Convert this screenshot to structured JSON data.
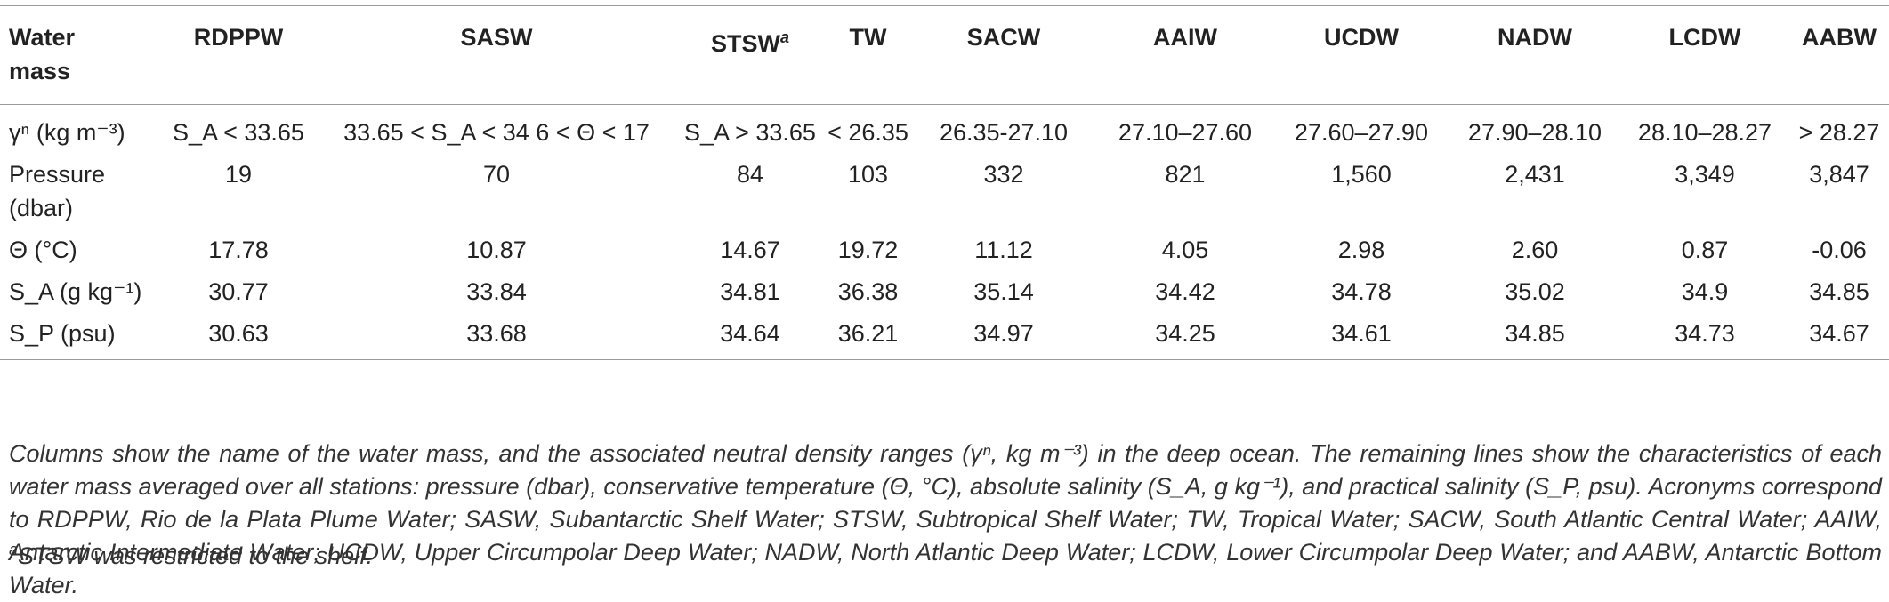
{
  "table": {
    "header": [
      "Water mass",
      "RDPPW",
      "SASW",
      "STSW",
      "TW",
      "SACW",
      "AAIW",
      "UCDW",
      "NADW",
      "LCDW",
      "AABW"
    ],
    "stsw_marker": "a",
    "rows": [
      {
        "label": "γⁿ (kg m⁻³)",
        "cells": [
          "S_A < 33.65",
          "33.65 < S_A < 34 6 < Θ < 17",
          "S_A > 33.65",
          "< 26.35",
          "26.35-27.10",
          "27.10–27.60",
          "27.60–27.90",
          "27.90–28.10",
          "28.10–28.27",
          "> 28.27"
        ]
      },
      {
        "label": "Pressure (dbar)",
        "cells": [
          "19",
          "70",
          "84",
          "103",
          "332",
          "821",
          "1,560",
          "2,431",
          "3,349",
          "3,847"
        ]
      },
      {
        "label": "Θ (°C)",
        "cells": [
          "17.78",
          "10.87",
          "14.67",
          "19.72",
          "11.12",
          "4.05",
          "2.98",
          "2.60",
          "0.87",
          "-0.06"
        ]
      },
      {
        "label": "S_A (g kg⁻¹)",
        "cells": [
          "30.77",
          "33.84",
          "34.81",
          "36.38",
          "35.14",
          "34.42",
          "34.78",
          "35.02",
          "34.9",
          "34.85"
        ]
      },
      {
        "label": "S_P (psu)",
        "cells": [
          "30.63",
          "33.68",
          "34.64",
          "36.21",
          "34.97",
          "34.25",
          "34.61",
          "34.85",
          "34.73",
          "34.67"
        ]
      }
    ]
  },
  "caption": "Columns show the name of the water mass, and the associated neutral density ranges (γⁿ, kg m⁻³) in the deep ocean. The remaining lines show the characteristics of each water mass averaged over all stations: pressure (dbar), conservative temperature (Θ, °C), absolute salinity (S_A, g kg⁻¹), and practical salinity (S_P, psu). Acronyms correspond to RDPPW, Rio de la Plata Plume Water; SASW, Subantarctic Shelf Water; STSW, Subtropical Shelf Water; TW, Tropical Water; SACW, South Atlantic Central Water; AAIW, Antarctic Intermediate Water; UCDW, Upper Circumpolar Deep Water; NADW, North Atlantic Deep Water; LCDW, Lower Circumpolar Deep Water; and AABW, Antarctic Bottom Water.",
  "footnote": {
    "marker": "a",
    "text": "STSW was restricted to the shelf."
  }
}
